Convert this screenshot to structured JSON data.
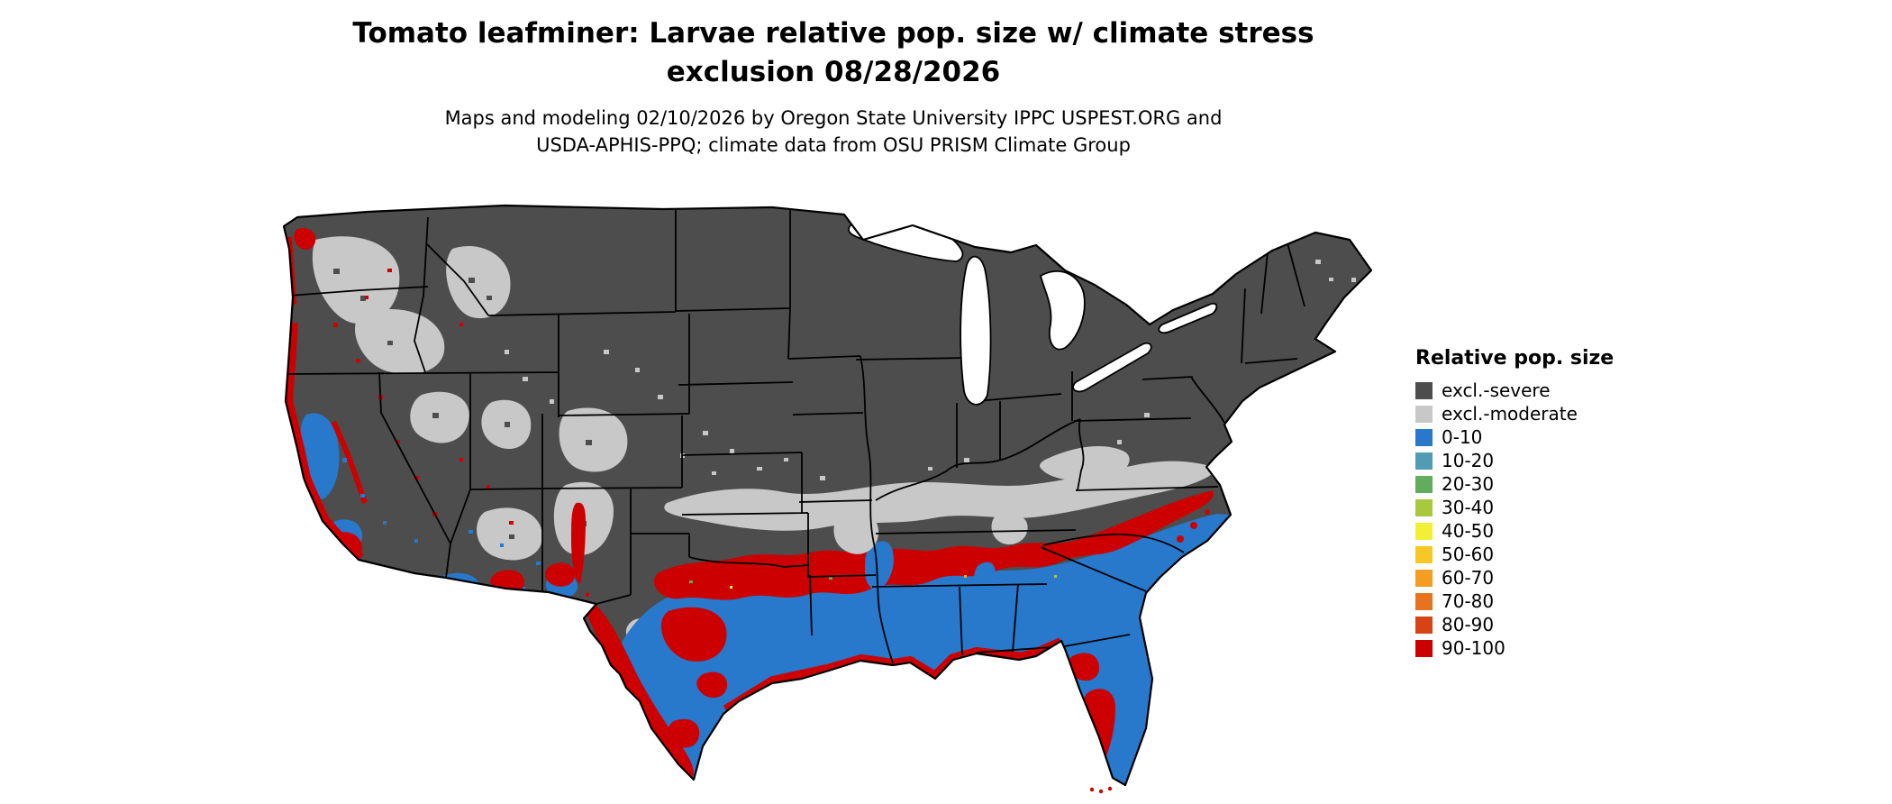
{
  "title": {
    "line1": "Tomato leafminer: Larvae relative pop. size w/ climate stress",
    "line2": "exclusion 08/28/2026"
  },
  "subtitle": {
    "line1": "Maps and modeling 02/10/2026 by Oregon State University IPPC USPEST.ORG and",
    "line2": "USDA-APHIS-PPQ; climate data from OSU PRISM Climate Group"
  },
  "legend": {
    "title": "Relative pop. size",
    "items": [
      {
        "label": "excl.-severe",
        "color": "#4d4d4d"
      },
      {
        "label": "excl.-moderate",
        "color": "#c8c8c8"
      },
      {
        "label": "0-10",
        "color": "#2878cc"
      },
      {
        "label": "10-20",
        "color": "#4f9cb4"
      },
      {
        "label": "20-30",
        "color": "#62ac5e"
      },
      {
        "label": "30-40",
        "color": "#a9c83e"
      },
      {
        "label": "40-50",
        "color": "#f3ef35"
      },
      {
        "label": "50-60",
        "color": "#f7c825"
      },
      {
        "label": "60-70",
        "color": "#f59d20"
      },
      {
        "label": "70-80",
        "color": "#e8731e"
      },
      {
        "label": "80-90",
        "color": "#d84315"
      },
      {
        "label": "90-100",
        "color": "#cc0000"
      }
    ]
  },
  "map": {
    "name": "contiguous-us-map",
    "type": "raster-choropleth",
    "land_base_color": "#4d4d4d",
    "moderate_exclusion_color": "#c8c8c8",
    "low_pop_color": "#2878cc",
    "high_pop_color": "#cc0000",
    "water_color": "#ffffff",
    "border_color": "#000000"
  }
}
